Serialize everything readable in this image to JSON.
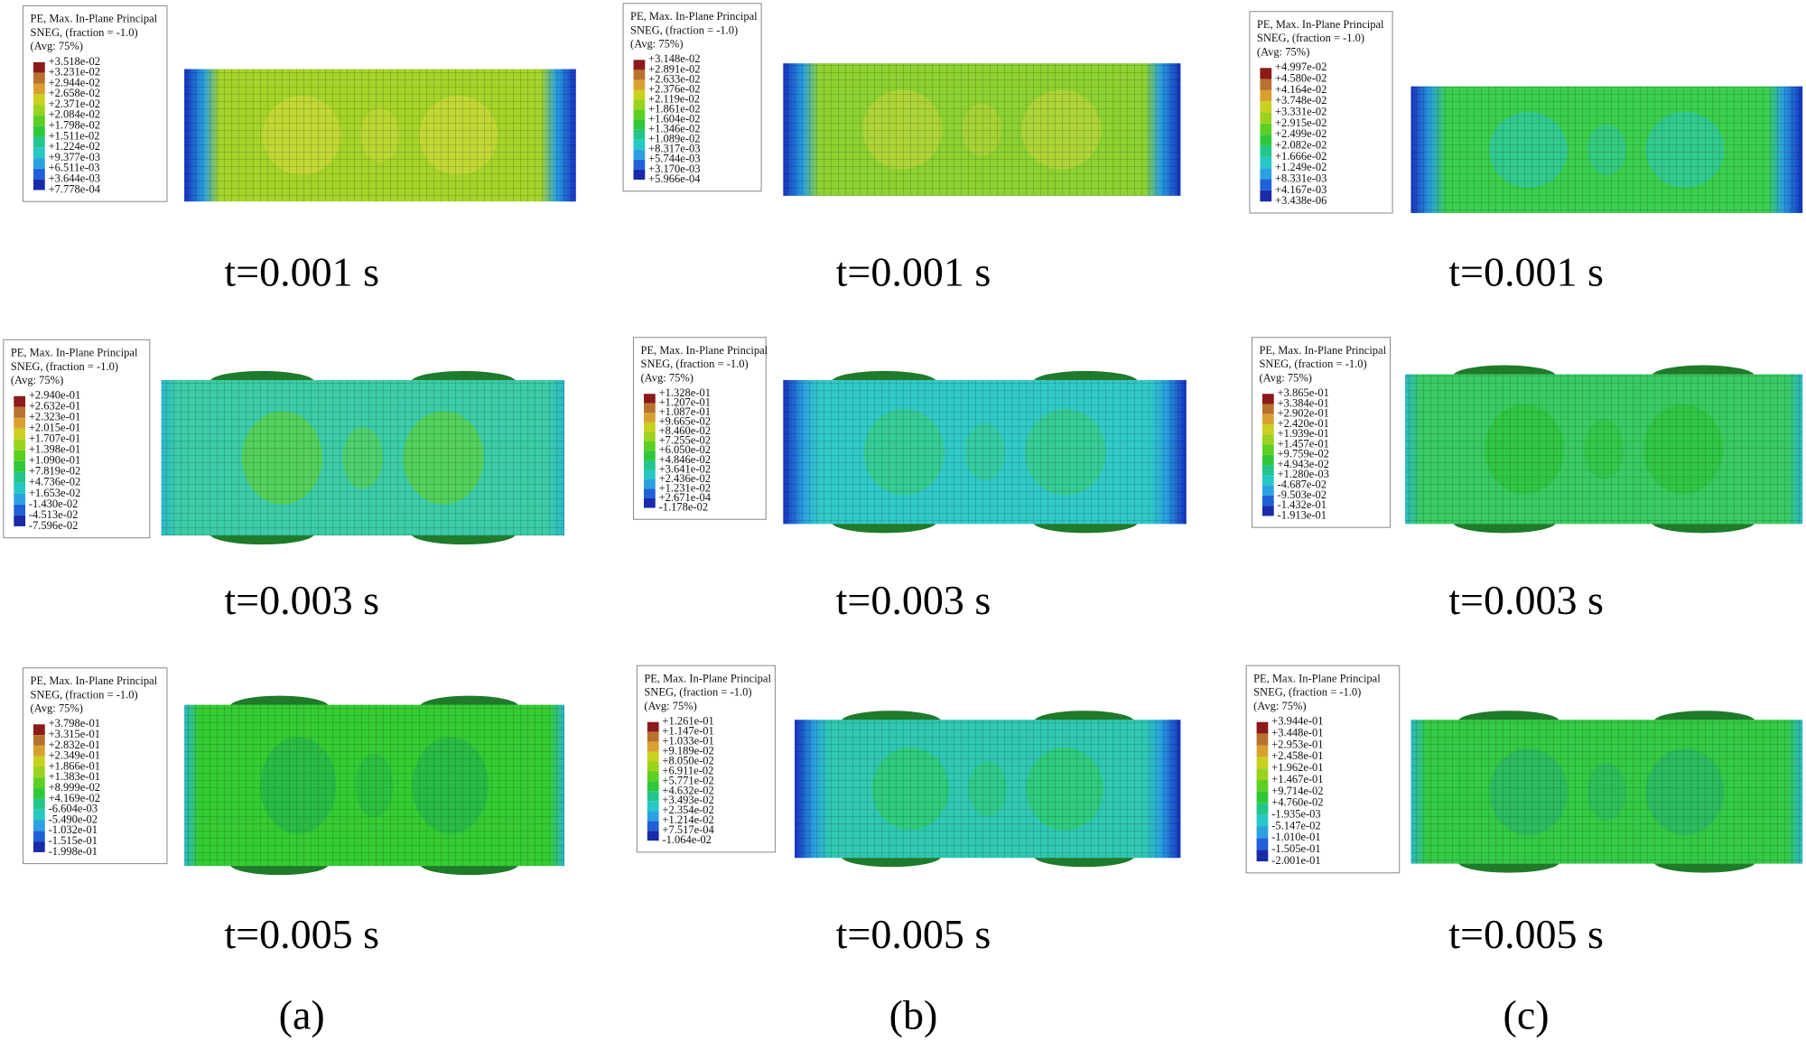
{
  "panels": [
    {
      "legend": {
        "title": [
          "PE, Max. In-Plane Principal",
          "SNEG, (fraction = -1.0)",
          "(Avg: 75%)"
        ],
        "values": [
          "+3.518e-02",
          "+3.231e-02",
          "+2.944e-02",
          "+2.658e-02",
          "+2.371e-02",
          "+2.084e-02",
          "+1.798e-02",
          "+1.511e-02",
          "+1.224e-02",
          "+9.377e-03",
          "+6.511e-03",
          "+3.644e-03",
          "+7.778e-04"
        ]
      },
      "time": "t=0.001 s"
    },
    {
      "legend": {
        "title": [
          "PE, Max. In-Plane Principal",
          "SNEG, (fraction = -1.0)",
          "(Avg: 75%)"
        ],
        "values": [
          "+3.148e-02",
          "+2.891e-02",
          "+2.633e-02",
          "+2.376e-02",
          "+2.119e-02",
          "+1.861e-02",
          "+1.604e-02",
          "+1.346e-02",
          "+1.089e-02",
          "+8.317e-03",
          "+5.744e-03",
          "+3.170e-03",
          "+5.966e-04"
        ]
      },
      "time": "t=0.001 s"
    },
    {
      "legend": {
        "title": [
          "PE, Max. In-Plane Principal",
          "SNEG, (fraction = -1.0)",
          "(Avg: 75%)"
        ],
        "values": [
          "+4.997e-02",
          "+4.580e-02",
          "+4.164e-02",
          "+3.748e-02",
          "+3.331e-02",
          "+2.915e-02",
          "+2.499e-02",
          "+2.082e-02",
          "+1.666e-02",
          "+1.249e-02",
          "+8.331e-03",
          "+4.167e-03",
          "+3.438e-06"
        ]
      },
      "time": "t=0.001 s"
    },
    {
      "legend": {
        "title": [
          "PE, Max. In-Plane Principal",
          "SNEG, (fraction = -1.0)",
          "(Avg: 75%)"
        ],
        "values": [
          "+2.940e-01",
          "+2.632e-01",
          "+2.323e-01",
          "+2.015e-01",
          "+1.707e-01",
          "+1.398e-01",
          "+1.090e-01",
          "+7.819e-02",
          "+4.736e-02",
          "+1.653e-02",
          "-1.430e-02",
          "-4.513e-02",
          "-7.596e-02"
        ]
      },
      "time": "t=0.003 s"
    },
    {
      "legend": {
        "title": [
          "PE, Max. In-Plane Principal",
          "SNEG, (fraction = -1.0)",
          "(Avg: 75%)"
        ],
        "values": [
          "+1.328e-01",
          "+1.207e-01",
          "+1.087e-01",
          "+9.665e-02",
          "+8.460e-02",
          "+7.255e-02",
          "+6.050e-02",
          "+4.846e-02",
          "+3.641e-02",
          "+2.436e-02",
          "+1.231e-02",
          "+2.671e-04",
          "-1.178e-02"
        ]
      },
      "time": "t=0.003 s"
    },
    {
      "legend": {
        "title": [
          "PE, Max. In-Plane Principal",
          "SNEG, (fraction = -1.0)",
          "(Avg: 75%)"
        ],
        "values": [
          "+3.865e-01",
          "+3.384e-01",
          "+2.902e-01",
          "+2.420e-01",
          "+1.939e-01",
          "+1.457e-01",
          "+9.759e-02",
          "+4.943e-02",
          "+1.280e-03",
          "-4.687e-02",
          "-9.503e-02",
          "-1.432e-01",
          "-1.913e-01"
        ]
      },
      "time": "t=0.003 s"
    },
    {
      "legend": {
        "title": [
          "PE, Max. In-Plane Principal",
          "SNEG, (fraction = -1.0)",
          "(Avg: 75%)"
        ],
        "values": [
          "+3.798e-01",
          "+3.315e-01",
          "+2.832e-01",
          "+2.349e-01",
          "+1.866e-01",
          "+1.383e-01",
          "+8.999e-02",
          "+4.169e-02",
          "-6.604e-03",
          "-5.490e-02",
          "-1.032e-01",
          "-1.515e-01",
          "-1.998e-01"
        ]
      },
      "time": "t=0.005 s"
    },
    {
      "legend": {
        "title": [
          "PE, Max. In-Plane Principal",
          "SNEG, (fraction = -1.0)",
          "(Avg: 75%)"
        ],
        "values": [
          "+1.261e-01",
          "+1.147e-01",
          "+1.033e-01",
          "+9.189e-02",
          "+8.050e-02",
          "+6.911e-02",
          "+5.771e-02",
          "+4.632e-02",
          "+3.493e-02",
          "+2.354e-02",
          "+1.214e-02",
          "+7.517e-04",
          "-1.064e-02"
        ]
      },
      "time": "t=0.005 s"
    },
    {
      "legend": {
        "title": [
          "PE, Max. In-Plane Principal",
          "SNEG, (fraction = -1.0)",
          "(Avg: 75%)"
        ],
        "values": [
          "+3.944e-01",
          "+3.448e-01",
          "+2.953e-01",
          "+2.458e-01",
          "+1.962e-01",
          "+1.467e-01",
          "+9.714e-02",
          "+4.760e-02",
          "-1.935e-03",
          "-5.147e-02",
          "-1.010e-01",
          "-1.505e-01",
          "-2.001e-01"
        ]
      },
      "time": "t=0.005 s"
    }
  ],
  "columns": [
    "(a)",
    "(b)",
    "(c)"
  ]
}
